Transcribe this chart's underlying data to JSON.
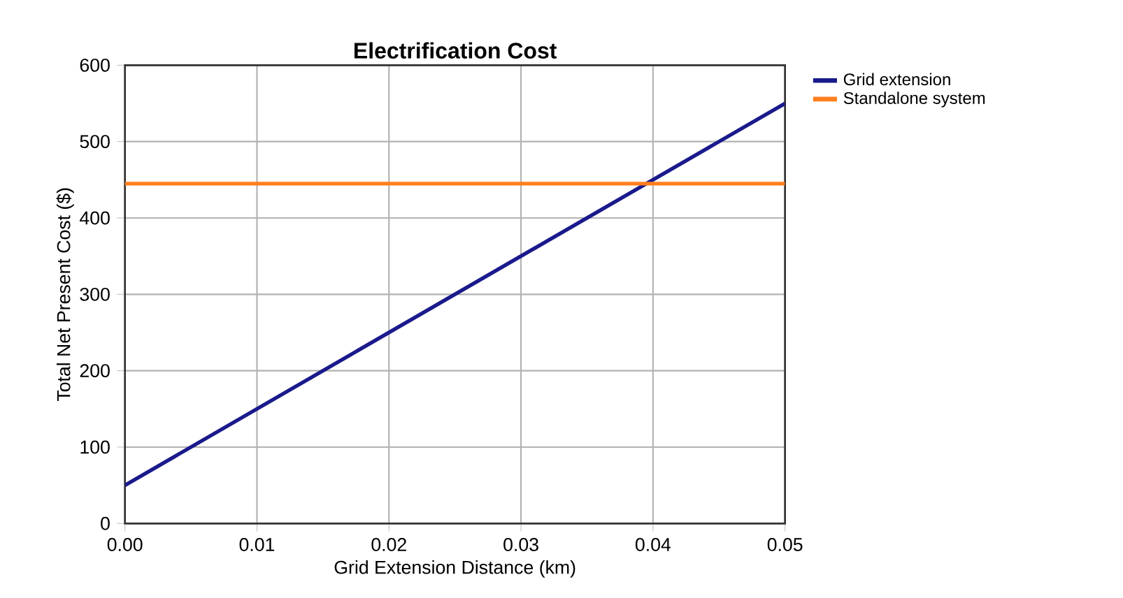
{
  "chart_data": {
    "type": "line",
    "title": "Electrification Cost",
    "xlabel": "Grid Extension Distance (km)",
    "ylabel": "Total Net Present Cost ($)",
    "x": [
      0,
      0.05
    ],
    "series": [
      {
        "name": "Grid extension",
        "color": "#1a1a8c",
        "values": [
          50,
          550
        ]
      },
      {
        "name": "Standalone system",
        "color": "#ff7f1e",
        "values": [
          445,
          445
        ]
      }
    ],
    "xlim": [
      0,
      0.05
    ],
    "ylim": [
      0,
      600
    ],
    "xticks": [
      {
        "value": 0,
        "label": "0.00"
      },
      0.01,
      0.02,
      0.03,
      0.04,
      0.05
    ],
    "yticks": [
      0,
      100,
      200,
      300,
      400,
      500,
      600
    ],
    "grid": true,
    "legend": "top right",
    "marker": "none",
    "line_style": "solid"
  }
}
